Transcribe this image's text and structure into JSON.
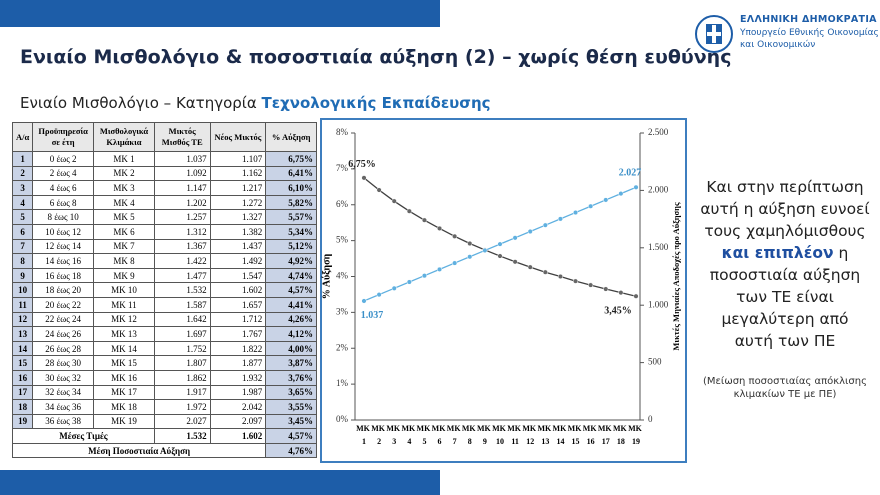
{
  "header": {
    "title": "Ενιαίο Μισθολόγιο & ποσοστιαία αύξηση (2) – χωρίς θέση ευθύνης",
    "subtitle_prefix": "Ενιαίο Μισθολόγιο – Κατηγορία ",
    "subtitle_emphasis": "Τεχνολογικής Εκπαίδευσης"
  },
  "logo": {
    "line1": "ΕΛΛΗΝΙΚΗ ΔΗΜΟΚΡΑΤΙΑ",
    "line2": "Υπουργείο Εθνικής Οικονομίας",
    "line3": "και Οικονομικών"
  },
  "table": {
    "header": [
      "Α/α",
      "Προϋπηρεσία σε έτη",
      "Μισθολογικά Κλιμάκια",
      "Μικτός Μισθός ΤΕ",
      "Νέος Μικτός",
      "% Αύξηση"
    ],
    "rows": [
      [
        "1",
        "0 έως 2",
        "ΜΚ 1",
        "1.037",
        "1.107",
        "6,75%"
      ],
      [
        "2",
        "2 έως 4",
        "ΜΚ 2",
        "1.092",
        "1.162",
        "6,41%"
      ],
      [
        "3",
        "4 έως 6",
        "ΜΚ 3",
        "1.147",
        "1.217",
        "6,10%"
      ],
      [
        "4",
        "6 έως 8",
        "ΜΚ 4",
        "1.202",
        "1.272",
        "5,82%"
      ],
      [
        "5",
        "8 έως 10",
        "ΜΚ 5",
        "1.257",
        "1.327",
        "5,57%"
      ],
      [
        "6",
        "10 έως 12",
        "ΜΚ 6",
        "1.312",
        "1.382",
        "5,34%"
      ],
      [
        "7",
        "12 έως 14",
        "ΜΚ 7",
        "1.367",
        "1.437",
        "5,12%"
      ],
      [
        "8",
        "14 έως 16",
        "ΜΚ 8",
        "1.422",
        "1.492",
        "4,92%"
      ],
      [
        "9",
        "16 έως 18",
        "ΜΚ 9",
        "1.477",
        "1.547",
        "4,74%"
      ],
      [
        "10",
        "18 έως 20",
        "ΜΚ 10",
        "1.532",
        "1.602",
        "4,57%"
      ],
      [
        "11",
        "20 έως 22",
        "ΜΚ 11",
        "1.587",
        "1.657",
        "4,41%"
      ],
      [
        "12",
        "22 έως 24",
        "ΜΚ 12",
        "1.642",
        "1.712",
        "4,26%"
      ],
      [
        "13",
        "24 έως 26",
        "ΜΚ 13",
        "1.697",
        "1.767",
        "4,12%"
      ],
      [
        "14",
        "26 έως 28",
        "ΜΚ 14",
        "1.752",
        "1.822",
        "4,00%"
      ],
      [
        "15",
        "28 έως 30",
        "ΜΚ 15",
        "1.807",
        "1.877",
        "3,87%"
      ],
      [
        "16",
        "30 έως 32",
        "ΜΚ 16",
        "1.862",
        "1.932",
        "3,76%"
      ],
      [
        "17",
        "32 έως 34",
        "ΜΚ 17",
        "1.917",
        "1.987",
        "3,65%"
      ],
      [
        "18",
        "34 έως 36",
        "ΜΚ 18",
        "1.972",
        "2.042",
        "3,55%"
      ],
      [
        "19",
        "36 έως 38",
        "ΜΚ 19",
        "2.027",
        "2.097",
        "3,45%"
      ]
    ],
    "footer": [
      [
        "Μέσες Τιμές",
        "1.532",
        "1.602",
        "4,57%"
      ],
      [
        "Μέση Ποσοστιαία Αύξηση",
        "4,76%"
      ]
    ]
  },
  "chart_data": {
    "type": "line",
    "categories": [
      "MK 1",
      "MK 2",
      "MK 3",
      "MK 4",
      "MK 5",
      "MK 6",
      "MK 7",
      "MK 8",
      "MK 9",
      "MK 10",
      "MK 11",
      "MK 12",
      "MK 13",
      "MK 14",
      "MK 15",
      "MK 16",
      "MK 17",
      "MK 18",
      "MK 19"
    ],
    "y_label": "% Αύξηση",
    "y2_label": "Μικτές Μηνιαίες Αποδοχές προ Αύξησης",
    "ylim": [
      0,
      8
    ],
    "yticks": [
      {
        "value": 0,
        "label": "0%"
      },
      {
        "value": 1,
        "label": "1%"
      },
      {
        "value": 2,
        "label": "2%"
      },
      {
        "value": 3,
        "label": "3%"
      },
      {
        "value": 4,
        "label": "4%"
      },
      {
        "value": 5,
        "label": "5%"
      },
      {
        "value": 6,
        "label": "6%"
      },
      {
        "value": 7,
        "label": "7%"
      },
      {
        "value": 8,
        "label": "8%"
      }
    ],
    "y2lim": [
      0,
      2500
    ],
    "y2ticks": [
      0,
      500,
      {
        "value": 1000,
        "label": "1.000"
      },
      {
        "value": 1500,
        "label": "1.500"
      },
      {
        "value": 2000,
        "label": "2.000"
      },
      {
        "value": 2500,
        "label": "2.500"
      }
    ],
    "series": [
      {
        "color": "#404040",
        "values": [
          6.75,
          6.41,
          6.1,
          5.82,
          5.57,
          5.34,
          5.12,
          4.92,
          4.74,
          4.57,
          4.41,
          4.26,
          4.12,
          4.0,
          3.87,
          3.76,
          3.65,
          3.55,
          3.45
        ],
        "value_labels": [
          "6,75%",
          null,
          null,
          null,
          null,
          null,
          null,
          null,
          null,
          null,
          null,
          null,
          null,
          null,
          null,
          null,
          null,
          null,
          "3,45%"
        ]
      },
      {
        "color": "#5fb0e0",
        "axis": "y2",
        "values": [
          1037,
          1092,
          1147,
          1202,
          1257,
          1312,
          1367,
          1422,
          1477,
          1532,
          1587,
          1642,
          1697,
          1752,
          1807,
          1862,
          1917,
          1972,
          2027
        ],
        "value_labels": [
          "1.037",
          null,
          null,
          null,
          null,
          null,
          null,
          null,
          null,
          null,
          null,
          null,
          null,
          null,
          null,
          null,
          null,
          null,
          "2.027"
        ]
      }
    ]
  },
  "side_note": {
    "text_before": "Και στην περίπτωση αυτή η αύξηση ευνοεί τους χαμηλόμισθους ",
    "emphasis": "και επιπλέον",
    "text_after": " η ποσοστιαία αύξηση των ΤΕ είναι μεγαλύτερη από αυτή των ΠΕ",
    "note": "(Μείωση ποσοστιαίας απόκλισης κλιμακίων ΤΕ με ΠΕ)"
  }
}
